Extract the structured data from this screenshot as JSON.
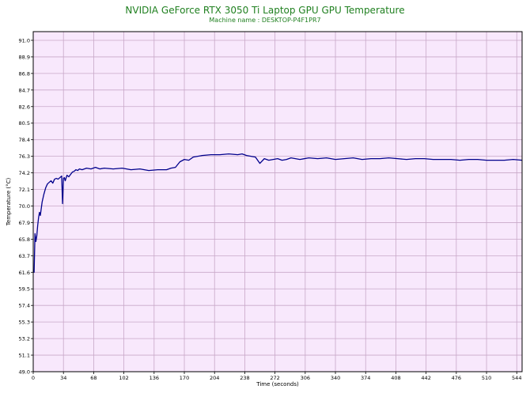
{
  "header": {
    "title": "NVIDIA GeForce RTX 3050 Ti Laptop GPU GPU Temperature",
    "subtitle": "Machine name : DESKTOP-P4F1PR7"
  },
  "colors": {
    "plot_background": "#f8e8fc",
    "grid": "#c8a8c8",
    "line": "#00008c",
    "title": "#208020"
  },
  "chart_data": {
    "type": "line",
    "title": "NVIDIA GeForce RTX 3050 Ti Laptop GPU GPU Temperature",
    "subtitle": "Machine name : DESKTOP-P4F1PR7",
    "xlabel": "Time (seconds)",
    "ylabel": "Temperature (°C)",
    "xlim": [
      0,
      550
    ],
    "ylim": [
      49.0,
      92.1
    ],
    "x_ticks": [
      "0",
      "34",
      "68",
      "102",
      "136",
      "170",
      "204",
      "238",
      "272",
      "306",
      "340",
      "374",
      "408",
      "442",
      "476",
      "510",
      "544"
    ],
    "y_ticks": [
      "49.0",
      "51.1",
      "53.2",
      "55.3",
      "57.4",
      "59.5",
      "61.6",
      "63.7",
      "65.8",
      "67.9",
      "70.0",
      "72.1",
      "74.2",
      "76.3",
      "78.4",
      "80.5",
      "82.6",
      "84.7",
      "86.8",
      "88.9",
      "91.0"
    ],
    "grid": true,
    "series": [
      {
        "x": [
          0,
          1,
          2,
          3,
          4,
          5,
          6,
          7,
          8,
          10,
          12,
          14,
          16,
          18,
          20,
          22,
          24,
          26,
          28,
          30,
          32,
          33,
          34,
          35,
          36,
          38,
          40,
          42,
          44,
          46,
          48,
          50,
          52,
          55,
          60,
          65,
          70,
          75,
          80,
          90,
          100,
          110,
          120,
          130,
          140,
          150,
          155,
          160,
          165,
          170,
          175,
          180,
          190,
          200,
          210,
          220,
          230,
          235,
          240,
          245,
          250,
          255,
          260,
          265,
          270,
          275,
          280,
          285,
          290,
          295,
          300,
          310,
          320,
          330,
          340,
          350,
          360,
          370,
          380,
          390,
          400,
          410,
          420,
          430,
          440,
          450,
          460,
          470,
          480,
          490,
          500,
          510,
          520,
          530,
          540,
          550
        ],
        "values": [
          61.9,
          61.6,
          66.5,
          65.5,
          66.2,
          67.5,
          68.5,
          69.2,
          68.8,
          70.5,
          71.5,
          72.3,
          72.8,
          73.0,
          73.2,
          72.9,
          73.4,
          73.5,
          73.4,
          73.6,
          73.8,
          70.3,
          73.5,
          73.6,
          73.2,
          73.9,
          73.7,
          74.0,
          74.3,
          74.4,
          74.6,
          74.5,
          74.7,
          74.6,
          74.8,
          74.7,
          74.9,
          74.7,
          74.8,
          74.7,
          74.8,
          74.6,
          74.7,
          74.5,
          74.6,
          74.6,
          74.8,
          74.9,
          75.6,
          75.9,
          75.8,
          76.2,
          76.4,
          76.5,
          76.5,
          76.6,
          76.5,
          76.6,
          76.4,
          76.3,
          76.2,
          75.4,
          76.0,
          75.8,
          75.9,
          76.0,
          75.8,
          75.9,
          76.1,
          76.0,
          75.9,
          76.1,
          76.0,
          76.1,
          75.9,
          76.0,
          76.1,
          75.9,
          76.0,
          76.0,
          76.1,
          76.0,
          75.9,
          76.0,
          76.0,
          75.9,
          75.9,
          75.9,
          75.8,
          75.9,
          75.9,
          75.8,
          75.8,
          75.8,
          75.9,
          75.8
        ]
      }
    ]
  }
}
